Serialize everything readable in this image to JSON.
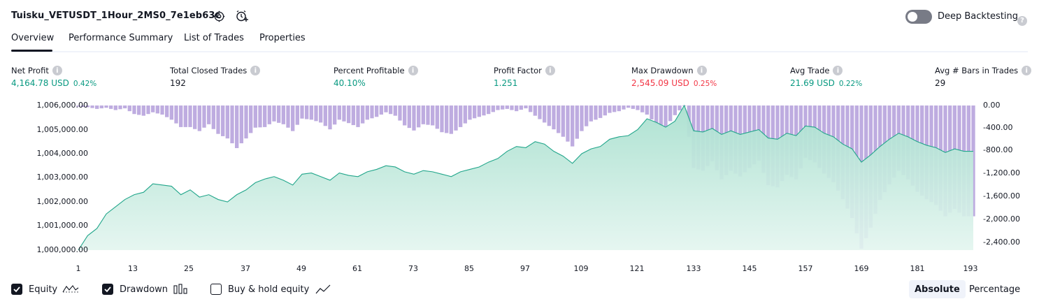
{
  "header": {
    "strategy_name": "Tuisku_VETUSDT_1Hour_2MS0_7e1eb63c",
    "settings_icon": "gear-icon",
    "add_alert_icon": "alarm-plus-icon",
    "deep_backtesting_label": "Deep Backtesting",
    "deep_backtesting_enabled": false,
    "help_glyph": "?"
  },
  "tabs": [
    {
      "label": "Overview",
      "active": true
    },
    {
      "label": "Performance Summary",
      "active": false
    },
    {
      "label": "List of Trades",
      "active": false
    },
    {
      "label": "Properties",
      "active": false
    }
  ],
  "metrics": [
    {
      "label": "Net Profit",
      "value": "4,164.78 USD",
      "pct": "0.42%",
      "color": "#089981"
    },
    {
      "label": "Total Closed Trades",
      "value": "192",
      "pct": "",
      "color": "#131722"
    },
    {
      "label": "Percent Profitable",
      "value": "40.10%",
      "pct": "",
      "color": "#089981"
    },
    {
      "label": "Profit Factor",
      "value": "1.251",
      "pct": "",
      "color": "#089981"
    },
    {
      "label": "Max Drawdown",
      "value": "2,545.09 USD",
      "pct": "0.25%",
      "color": "#f23645"
    },
    {
      "label": "Avg Trade",
      "value": "21.69 USD",
      "pct": "0.22%",
      "color": "#089981"
    },
    {
      "label": "Avg # Bars in Trades",
      "value": "29",
      "pct": "",
      "color": "#131722"
    }
  ],
  "chart_data": {
    "type": "area",
    "series": [
      {
        "name": "Equity",
        "axis": "left",
        "color": "#22a68b",
        "x": [
          1,
          3,
          5,
          7,
          9,
          11,
          13,
          15,
          17,
          19,
          21,
          23,
          25,
          27,
          29,
          31,
          33,
          35,
          37,
          39,
          41,
          43,
          45,
          47,
          49,
          51,
          53,
          55,
          57,
          59,
          61,
          63,
          65,
          67,
          69,
          71,
          73,
          75,
          77,
          79,
          81,
          83,
          85,
          87,
          89,
          91,
          93,
          95,
          97,
          99,
          101,
          103,
          105,
          107,
          109,
          111,
          113,
          115,
          117,
          119,
          121,
          123,
          125,
          127,
          129,
          131,
          133,
          135,
          137,
          139,
          141,
          143,
          145,
          147,
          149,
          151,
          153,
          155,
          157,
          159,
          161,
          163,
          165,
          167,
          169,
          171,
          173,
          175,
          177,
          179,
          181,
          183,
          185,
          187,
          189,
          191,
          193
        ],
        "values": [
          1000000,
          1000600,
          1000900,
          1001500,
          1001800,
          1002100,
          1002300,
          1002400,
          1002750,
          1002700,
          1002650,
          1002300,
          1002500,
          1002200,
          1002300,
          1002100,
          1002000,
          1002300,
          1002500,
          1002800,
          1002950,
          1003050,
          1002900,
          1002700,
          1003150,
          1003200,
          1003050,
          1002900,
          1003200,
          1003100,
          1003050,
          1003250,
          1003350,
          1003500,
          1003450,
          1003250,
          1003150,
          1003300,
          1003250,
          1003150,
          1003050,
          1003250,
          1003350,
          1003450,
          1003650,
          1003800,
          1004100,
          1004300,
          1004250,
          1004500,
          1004400,
          1004100,
          1003900,
          1003600,
          1004000,
          1004200,
          1004300,
          1004600,
          1004700,
          1004750,
          1005000,
          1005450,
          1005300,
          1005100,
          1005350,
          1006000,
          1004950,
          1004900,
          1005050,
          1004800,
          1004950,
          1004800,
          1004900,
          1005000,
          1004650,
          1004600,
          1004850,
          1004750,
          1005150,
          1005100,
          1004850,
          1004700,
          1004400,
          1004200,
          1003650,
          1003950,
          1004300,
          1004600,
          1004850,
          1004700,
          1004500,
          1004350,
          1004250,
          1004050,
          1004200,
          1004100,
          1004100
        ]
      },
      {
        "name": "Drawdown",
        "axis": "right",
        "color": "#b39ddb",
        "x": [
          1,
          3,
          5,
          7,
          9,
          11,
          13,
          15,
          17,
          19,
          21,
          23,
          25,
          27,
          29,
          31,
          33,
          35,
          37,
          39,
          41,
          43,
          45,
          47,
          49,
          51,
          53,
          55,
          57,
          59,
          61,
          63,
          65,
          67,
          69,
          71,
          73,
          75,
          77,
          79,
          81,
          83,
          85,
          87,
          89,
          91,
          93,
          95,
          97,
          99,
          101,
          103,
          105,
          107,
          109,
          111,
          113,
          115,
          117,
          119,
          121,
          123,
          125,
          127,
          129,
          131,
          133,
          135,
          137,
          139,
          141,
          143,
          145,
          147,
          149,
          151,
          153,
          155,
          157,
          159,
          161,
          163,
          165,
          167,
          169,
          171,
          173,
          175,
          177,
          179,
          181,
          183,
          185,
          187,
          189,
          191,
          193
        ],
        "values": [
          -20,
          -30,
          -60,
          -40,
          -80,
          -50,
          -150,
          -180,
          -120,
          -160,
          -250,
          -380,
          -380,
          -450,
          -330,
          -500,
          -580,
          -750,
          -580,
          -390,
          -380,
          -280,
          -330,
          -450,
          -230,
          -250,
          -300,
          -420,
          -250,
          -310,
          -380,
          -250,
          -200,
          -120,
          -180,
          -350,
          -440,
          -330,
          -350,
          -470,
          -500,
          -380,
          -250,
          -200,
          -150,
          -80,
          -60,
          -100,
          -50,
          -180,
          -300,
          -420,
          -550,
          -720,
          -450,
          -280,
          -220,
          -130,
          -100,
          -40,
          -80,
          -160,
          -330,
          -380,
          -170,
          0,
          -1100,
          -1150,
          -980,
          -1300,
          -1150,
          -1250,
          -1100,
          -970,
          -1400,
          -1440,
          -1220,
          -1300,
          -920,
          -1000,
          -1200,
          -1350,
          -1650,
          -1980,
          -2520,
          -2150,
          -1660,
          -1390,
          -1150,
          -1300,
          -1520,
          -1650,
          -1750,
          -1950,
          -1820,
          -1950,
          -1950
        ]
      }
    ],
    "xticks": [
      1,
      13,
      25,
      37,
      49,
      61,
      73,
      85,
      97,
      109,
      121,
      133,
      145,
      157,
      169,
      181,
      193
    ],
    "ylim_left": [
      1000000,
      1006000
    ],
    "yticks_left": [
      "1,006,000.00",
      "1,005,000.00",
      "1,004,000.00",
      "1,003,000.00",
      "1,002,000.00",
      "1,001,000.00",
      "1,000,000.00"
    ],
    "ylim_right": [
      -2545.09,
      0
    ],
    "yticks_right": [
      "0.00",
      "-400.00",
      "-800.00",
      "-1,200.00",
      "-1,600.00",
      "-2,000.00",
      "-2,400.00"
    ]
  },
  "legend": [
    {
      "label": "Equity",
      "checked": true,
      "icon": "equity-line-icon"
    },
    {
      "label": "Drawdown",
      "checked": true,
      "icon": "drawdown-bars-icon"
    },
    {
      "label": "Buy & hold equity",
      "checked": false,
      "icon": "buy-hold-line-icon"
    }
  ],
  "modes": [
    {
      "label": "Absolute",
      "active": true
    },
    {
      "label": "Percentage",
      "active": false
    }
  ]
}
